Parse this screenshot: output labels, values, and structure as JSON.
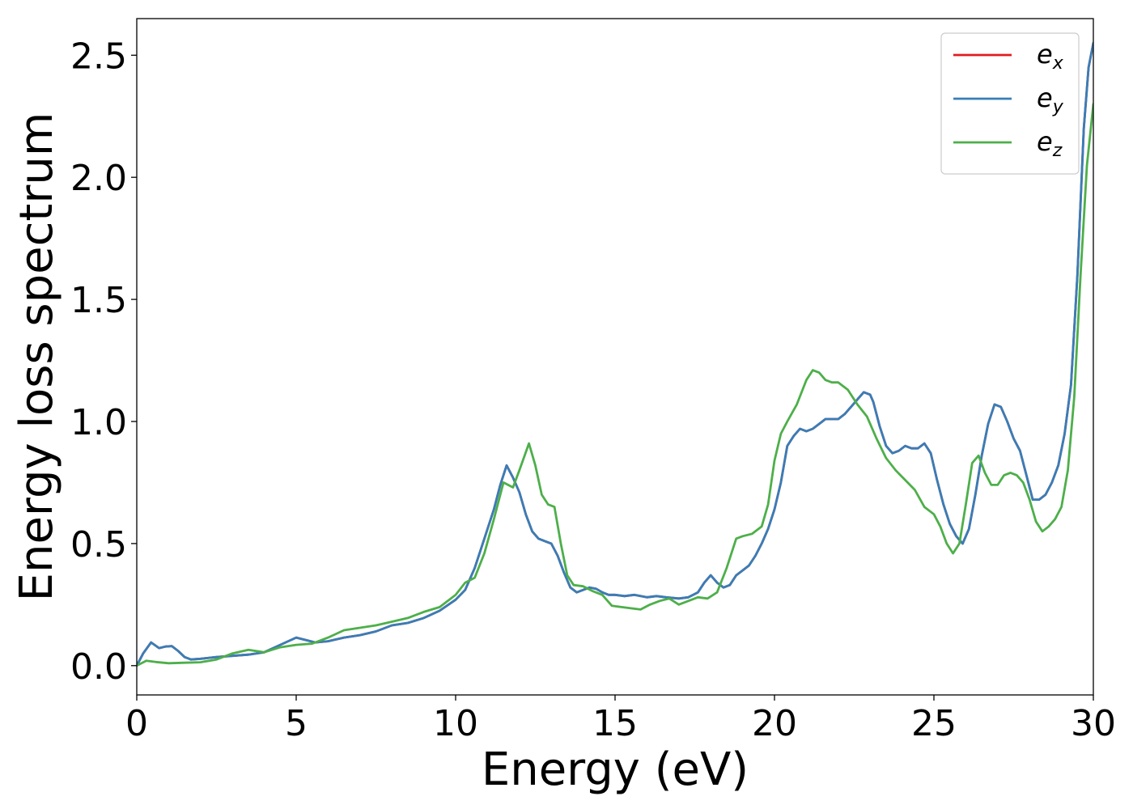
{
  "chart_data": {
    "type": "line",
    "title": "",
    "xlabel": "Energy (eV)",
    "ylabel": "Energy loss spectrum",
    "xlim": [
      0,
      30
    ],
    "ylim": [
      -0.12,
      2.65
    ],
    "xticks": [
      0,
      5,
      10,
      15,
      20,
      25,
      30
    ],
    "xtick_labels": [
      "0",
      "5",
      "10",
      "15",
      "20",
      "25",
      "30"
    ],
    "yticks": [
      0.0,
      0.5,
      1.0,
      1.5,
      2.0,
      2.5
    ],
    "ytick_labels": [
      "0.0",
      "0.5",
      "1.0",
      "1.5",
      "2.0",
      "2.5"
    ],
    "grid": false,
    "legend_position": "top-right",
    "series": [
      {
        "name": "e_x",
        "legend_base": "e",
        "legend_sub": "x",
        "color": "#e41a1c",
        "x": [
          0,
          0.2,
          0.45,
          0.7,
          0.9,
          1.1,
          1.3,
          1.5,
          1.7,
          2,
          2.5,
          3,
          3.5,
          4,
          4.5,
          5,
          5.3,
          5.6,
          6,
          6.5,
          7,
          7.5,
          8,
          8.5,
          9,
          9.5,
          10,
          10.3,
          10.6,
          10.9,
          11.2,
          11.4,
          11.6,
          11.8,
          12,
          12.2,
          12.4,
          12.6,
          12.8,
          13,
          13.2,
          13.4,
          13.6,
          13.8,
          14,
          14.2,
          14.4,
          14.6,
          14.8,
          15,
          15.3,
          15.6,
          16,
          16.3,
          16.6,
          17,
          17.3,
          17.6,
          17.8,
          18,
          18.2,
          18.4,
          18.6,
          18.8,
          19,
          19.2,
          19.4,
          19.6,
          19.8,
          20,
          20.2,
          20.4,
          20.6,
          20.8,
          21,
          21.2,
          21.4,
          21.6,
          21.8,
          22,
          22.2,
          22.4,
          22.6,
          22.8,
          23,
          23.1,
          23.3,
          23.5,
          23.7,
          23.9,
          24.1,
          24.3,
          24.5,
          24.7,
          24.9,
          25.1,
          25.3,
          25.5,
          25.7,
          25.9,
          26.1,
          26.3,
          26.5,
          26.7,
          26.9,
          27.1,
          27.3,
          27.5,
          27.7,
          27.9,
          28.1,
          28.3,
          28.5,
          28.7,
          28.9,
          29.1,
          29.3,
          29.5,
          29.7,
          29.85,
          30
        ],
        "y": [
          0.0,
          0.05,
          0.095,
          0.072,
          0.078,
          0.08,
          0.06,
          0.035,
          0.025,
          0.028,
          0.035,
          0.04,
          0.045,
          0.055,
          0.085,
          0.115,
          0.105,
          0.095,
          0.1,
          0.115,
          0.125,
          0.14,
          0.165,
          0.175,
          0.195,
          0.225,
          0.27,
          0.31,
          0.4,
          0.52,
          0.64,
          0.74,
          0.82,
          0.77,
          0.71,
          0.62,
          0.55,
          0.52,
          0.51,
          0.5,
          0.45,
          0.38,
          0.32,
          0.3,
          0.31,
          0.32,
          0.315,
          0.3,
          0.29,
          0.29,
          0.285,
          0.29,
          0.28,
          0.285,
          0.28,
          0.275,
          0.28,
          0.3,
          0.34,
          0.37,
          0.34,
          0.32,
          0.33,
          0.37,
          0.39,
          0.41,
          0.45,
          0.5,
          0.56,
          0.64,
          0.75,
          0.9,
          0.94,
          0.97,
          0.96,
          0.97,
          0.99,
          1.01,
          1.01,
          1.01,
          1.03,
          1.06,
          1.09,
          1.12,
          1.11,
          1.08,
          0.98,
          0.9,
          0.87,
          0.88,
          0.9,
          0.89,
          0.89,
          0.91,
          0.87,
          0.76,
          0.66,
          0.58,
          0.53,
          0.5,
          0.56,
          0.7,
          0.86,
          0.99,
          1.07,
          1.06,
          1.0,
          0.93,
          0.88,
          0.78,
          0.68,
          0.68,
          0.7,
          0.75,
          0.82,
          0.95,
          1.15,
          1.6,
          2.2,
          2.45,
          2.55
        ]
      },
      {
        "name": "e_y",
        "legend_base": "e",
        "legend_sub": "y",
        "color": "#377eb8",
        "x": [
          0,
          0.2,
          0.45,
          0.7,
          0.9,
          1.1,
          1.3,
          1.5,
          1.7,
          2,
          2.5,
          3,
          3.5,
          4,
          4.5,
          5,
          5.3,
          5.6,
          6,
          6.5,
          7,
          7.5,
          8,
          8.5,
          9,
          9.5,
          10,
          10.3,
          10.6,
          10.9,
          11.2,
          11.4,
          11.6,
          11.8,
          12,
          12.2,
          12.4,
          12.6,
          12.8,
          13,
          13.2,
          13.4,
          13.6,
          13.8,
          14,
          14.2,
          14.4,
          14.6,
          14.8,
          15,
          15.3,
          15.6,
          16,
          16.3,
          16.6,
          17,
          17.3,
          17.6,
          17.8,
          18,
          18.2,
          18.4,
          18.6,
          18.8,
          19,
          19.2,
          19.4,
          19.6,
          19.8,
          20,
          20.2,
          20.4,
          20.6,
          20.8,
          21,
          21.2,
          21.4,
          21.6,
          21.8,
          22,
          22.2,
          22.4,
          22.6,
          22.8,
          23,
          23.1,
          23.3,
          23.5,
          23.7,
          23.9,
          24.1,
          24.3,
          24.5,
          24.7,
          24.9,
          25.1,
          25.3,
          25.5,
          25.7,
          25.9,
          26.1,
          26.3,
          26.5,
          26.7,
          26.9,
          27.1,
          27.3,
          27.5,
          27.7,
          27.9,
          28.1,
          28.3,
          28.5,
          28.7,
          28.9,
          29.1,
          29.3,
          29.5,
          29.7,
          29.85,
          30
        ],
        "y": [
          0.0,
          0.05,
          0.095,
          0.072,
          0.078,
          0.08,
          0.06,
          0.035,
          0.025,
          0.028,
          0.035,
          0.04,
          0.045,
          0.055,
          0.085,
          0.115,
          0.105,
          0.095,
          0.1,
          0.115,
          0.125,
          0.14,
          0.165,
          0.175,
          0.195,
          0.225,
          0.27,
          0.31,
          0.4,
          0.52,
          0.64,
          0.74,
          0.82,
          0.77,
          0.71,
          0.62,
          0.55,
          0.52,
          0.51,
          0.5,
          0.45,
          0.38,
          0.32,
          0.3,
          0.31,
          0.32,
          0.315,
          0.3,
          0.29,
          0.29,
          0.285,
          0.29,
          0.28,
          0.285,
          0.28,
          0.275,
          0.28,
          0.3,
          0.34,
          0.37,
          0.34,
          0.32,
          0.33,
          0.37,
          0.39,
          0.41,
          0.45,
          0.5,
          0.56,
          0.64,
          0.75,
          0.9,
          0.94,
          0.97,
          0.96,
          0.97,
          0.99,
          1.01,
          1.01,
          1.01,
          1.03,
          1.06,
          1.09,
          1.12,
          1.11,
          1.08,
          0.98,
          0.9,
          0.87,
          0.88,
          0.9,
          0.89,
          0.89,
          0.91,
          0.87,
          0.76,
          0.66,
          0.58,
          0.53,
          0.5,
          0.56,
          0.7,
          0.86,
          0.99,
          1.07,
          1.06,
          1.0,
          0.93,
          0.88,
          0.78,
          0.68,
          0.68,
          0.7,
          0.75,
          0.82,
          0.95,
          1.15,
          1.6,
          2.2,
          2.45,
          2.55
        ]
      },
      {
        "name": "e_z",
        "legend_base": "e",
        "legend_sub": "z",
        "color": "#4daf4a",
        "x": [
          0,
          0.3,
          0.6,
          1,
          1.5,
          2,
          2.5,
          3,
          3.5,
          4,
          4.5,
          5,
          5.5,
          6,
          6.5,
          7,
          7.5,
          8,
          8.5,
          9,
          9.5,
          10,
          10.3,
          10.6,
          10.9,
          11.2,
          11.5,
          11.8,
          12,
          12.3,
          12.5,
          12.7,
          12.9,
          13.1,
          13.3,
          13.5,
          13.7,
          14,
          14.3,
          14.6,
          14.9,
          15.2,
          15.5,
          15.8,
          16.1,
          16.4,
          16.7,
          17,
          17.3,
          17.6,
          17.9,
          18.2,
          18.5,
          18.8,
          19,
          19.3,
          19.6,
          19.8,
          20,
          20.2,
          20.4,
          20.7,
          21,
          21.2,
          21.4,
          21.6,
          21.8,
          22,
          22.3,
          22.6,
          22.9,
          23.2,
          23.5,
          23.8,
          24.1,
          24.4,
          24.7,
          25,
          25.2,
          25.4,
          25.6,
          25.8,
          26,
          26.2,
          26.4,
          26.6,
          26.8,
          27,
          27.2,
          27.4,
          27.6,
          27.8,
          28,
          28.2,
          28.4,
          28.6,
          28.8,
          29,
          29.2,
          29.4,
          29.6,
          29.8,
          30
        ],
        "y": [
          0.0,
          0.02,
          0.015,
          0.01,
          0.012,
          0.014,
          0.025,
          0.05,
          0.065,
          0.055,
          0.075,
          0.085,
          0.09,
          0.115,
          0.145,
          0.155,
          0.165,
          0.18,
          0.195,
          0.22,
          0.24,
          0.29,
          0.34,
          0.36,
          0.46,
          0.6,
          0.75,
          0.73,
          0.8,
          0.91,
          0.82,
          0.7,
          0.66,
          0.65,
          0.5,
          0.37,
          0.33,
          0.325,
          0.305,
          0.29,
          0.245,
          0.24,
          0.235,
          0.23,
          0.25,
          0.265,
          0.275,
          0.25,
          0.265,
          0.28,
          0.275,
          0.3,
          0.4,
          0.52,
          0.53,
          0.54,
          0.57,
          0.66,
          0.84,
          0.95,
          1.0,
          1.07,
          1.17,
          1.21,
          1.2,
          1.17,
          1.16,
          1.16,
          1.13,
          1.07,
          1.02,
          0.93,
          0.85,
          0.8,
          0.76,
          0.72,
          0.65,
          0.62,
          0.57,
          0.5,
          0.46,
          0.5,
          0.66,
          0.83,
          0.86,
          0.79,
          0.74,
          0.74,
          0.78,
          0.79,
          0.78,
          0.75,
          0.68,
          0.59,
          0.55,
          0.57,
          0.6,
          0.65,
          0.8,
          1.1,
          1.6,
          2.05,
          2.3
        ]
      }
    ]
  }
}
